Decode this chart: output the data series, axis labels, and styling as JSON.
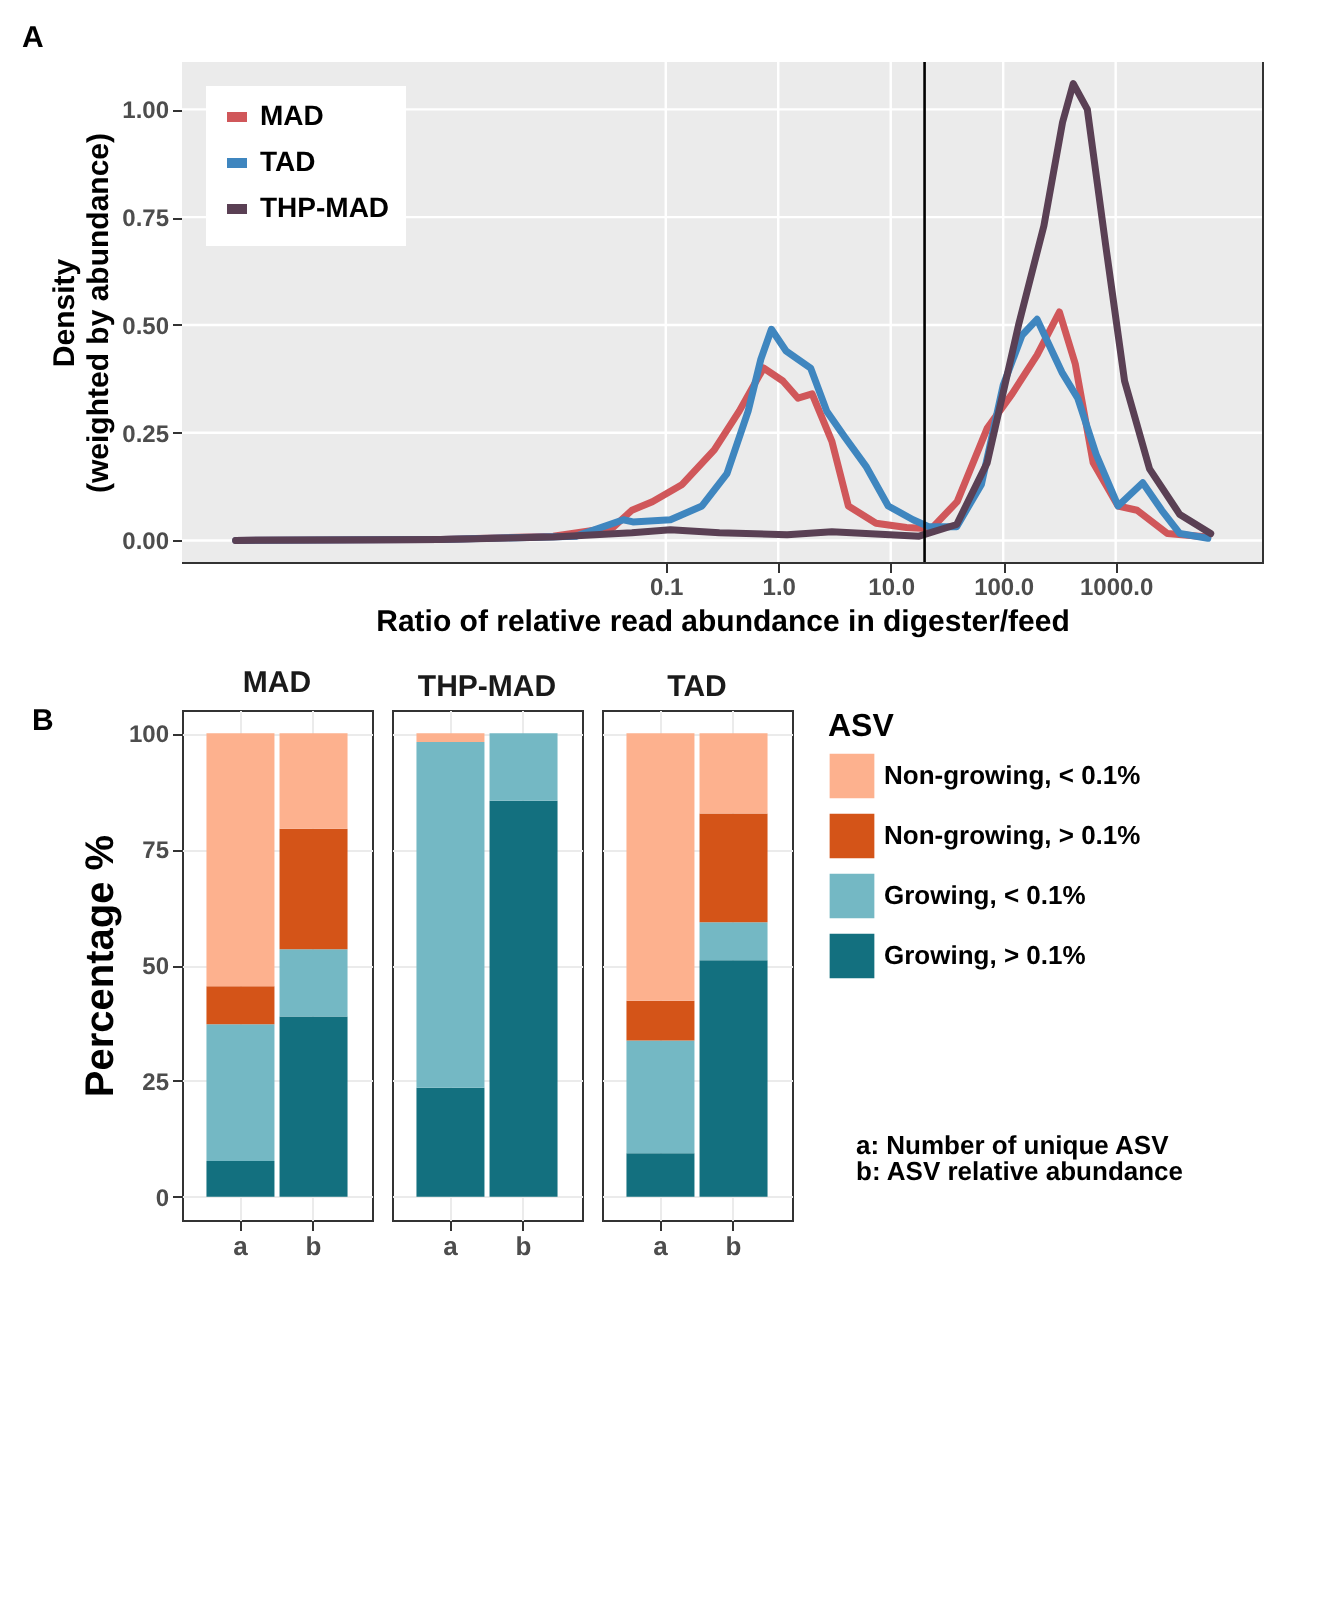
{
  "chart_data": [
    {
      "type": "line",
      "title": "A",
      "xlabel": "Ratio of relative read abundance in digester/feed",
      "ylabel": "Density\n(weighted by abundance)",
      "log": "x",
      "grid": true,
      "legend": "top left",
      "line_style": "solid",
      "marker": "none",
      "xlim": [
        5e-06,
        20000
      ],
      "xticks": [
        {
          "value": 0.1,
          "label": "0.1"
        },
        {
          "value": 1,
          "label": "1.0"
        },
        {
          "value": 10,
          "label": "10.0"
        },
        {
          "value": 100,
          "label": "100.0"
        },
        {
          "value": 1000,
          "label": "1000.0"
        }
      ],
      "ylim": [
        -0.05,
        1.11
      ],
      "yticks": [
        {
          "value": 0,
          "label": "0.00"
        },
        {
          "value": 0.25,
          "label": "0.25"
        },
        {
          "value": 0.5,
          "label": "0.50"
        },
        {
          "value": 0.75,
          "label": "0.75"
        },
        {
          "value": 1,
          "label": "1.00"
        }
      ],
      "ref_lines": [
        {
          "axis": "x",
          "value": 20,
          "color": "#000000"
        }
      ],
      "series": [
        {
          "name": "MAD",
          "color": "#d0575a",
          "x": [
            1.5e-05,
            0.001,
            0.01,
            0.034,
            0.05,
            0.076,
            0.14,
            0.27,
            0.45,
            0.74,
            1.1,
            1.5,
            2.0,
            3.0,
            4.2,
            7.4,
            13.8,
            22.9,
            39,
            72,
            120,
            200,
            316,
            437,
            631,
            1050,
            1550,
            2880,
            6600
          ],
          "values": [
            0,
            0.002,
            0.01,
            0.03,
            0.07,
            0.09,
            0.13,
            0.21,
            0.3,
            0.4,
            0.37,
            0.33,
            0.34,
            0.23,
            0.08,
            0.04,
            0.03,
            0.027,
            0.09,
            0.26,
            0.34,
            0.43,
            0.53,
            0.41,
            0.18,
            0.08,
            0.07,
            0.016,
            0.008
          ]
        },
        {
          "name": "TAD",
          "color": "#3f86bf",
          "x": [
            1.5e-05,
            0.001,
            0.016,
            0.042,
            0.051,
            0.11,
            0.21,
            0.35,
            0.54,
            0.7,
            0.87,
            1.17,
            1.5,
            1.94,
            2.7,
            3.9,
            6.1,
            9.5,
            15.8,
            21.7,
            38.6,
            64,
            100,
            147,
            200,
            333,
            460,
            670,
            1050,
            1740,
            2570,
            3720,
            6600
          ],
          "values": [
            0,
            0.002,
            0.01,
            0.048,
            0.043,
            0.048,
            0.08,
            0.155,
            0.3,
            0.42,
            0.49,
            0.44,
            0.42,
            0.4,
            0.3,
            0.24,
            0.17,
            0.08,
            0.048,
            0.032,
            0.032,
            0.13,
            0.36,
            0.476,
            0.513,
            0.39,
            0.33,
            0.2,
            0.08,
            0.134,
            0.07,
            0.016,
            0.005
          ]
        },
        {
          "name": "THP-MAD",
          "color": "#5a4054",
          "x": [
            1.5e-05,
            0.001,
            0.01,
            0.05,
            0.11,
            0.3,
            1.2,
            3.0,
            17.9,
            38.6,
            72,
            137,
            230,
            337,
            420,
            560,
            820,
            1200,
            2000,
            3720,
            7000
          ],
          "values": [
            0,
            0.002,
            0.008,
            0.018,
            0.025,
            0.018,
            0.013,
            0.02,
            0.01,
            0.037,
            0.18,
            0.5,
            0.73,
            0.97,
            1.06,
            1.0,
            0.68,
            0.37,
            0.166,
            0.06,
            0.016
          ]
        }
      ]
    },
    {
      "type": "bar",
      "title": "MAD",
      "stacked": true,
      "ylabel": "Percentage %",
      "annotations": [
        "B"
      ],
      "grid": true,
      "categories": [
        "a",
        "b"
      ],
      "ylim": [
        -5,
        105
      ],
      "yticks": [
        0,
        25,
        50,
        75,
        100
      ],
      "series": [
        {
          "color": "#13707f",
          "values": [
            7.7,
            38.9
          ]
        },
        {
          "color": "#74b8c4",
          "values": [
            29.5,
            14.5
          ]
        },
        {
          "color": "#d45418",
          "values": [
            8.2,
            26.0
          ]
        },
        {
          "color": "#fdb18e",
          "values": [
            54.6,
            20.6
          ]
        }
      ]
    },
    {
      "type": "bar",
      "title": "THP-MAD",
      "stacked": true,
      "grid": true,
      "tick_labels": "x",
      "categories": [
        "a",
        "b"
      ],
      "ylim": [
        -5,
        105
      ],
      "yticks": [
        0,
        25,
        50,
        75,
        100
      ],
      "series": [
        {
          "color": "#13707f",
          "values": [
            23.5,
            85.4
          ]
        },
        {
          "color": "#74b8c4",
          "values": [
            74.6,
            14.6
          ]
        },
        {
          "color": "#d45418",
          "values": [
            0,
            0
          ]
        },
        {
          "color": "#fdb18e",
          "values": [
            1.9,
            0
          ]
        }
      ]
    },
    {
      "type": "bar",
      "title": "TAD",
      "stacked": true,
      "grid": true,
      "tick_labels": "x",
      "legend": "right",
      "legend_title": "ASV",
      "annotations": [
        "a: Number of unique ASV",
        "b: ASV relative abundance"
      ],
      "categories": [
        "a",
        "b"
      ],
      "ylim": [
        -5,
        105
      ],
      "yticks": [
        0,
        25,
        50,
        75,
        100
      ],
      "series": [
        {
          "name": "Growing, > 0.1%",
          "color": "#13707f",
          "values": [
            9.4,
            51.0
          ]
        },
        {
          "name": "Growing, < 0.1%",
          "color": "#74b8c4",
          "values": [
            24.3,
            8.2
          ]
        },
        {
          "name": "Non-growing, > 0.1%",
          "color": "#d45418",
          "values": [
            8.6,
            23.5
          ]
        },
        {
          "name": "Non-growing, < 0.1%",
          "color": "#fdb18e",
          "values": [
            57.7,
            17.3
          ]
        }
      ]
    }
  ]
}
